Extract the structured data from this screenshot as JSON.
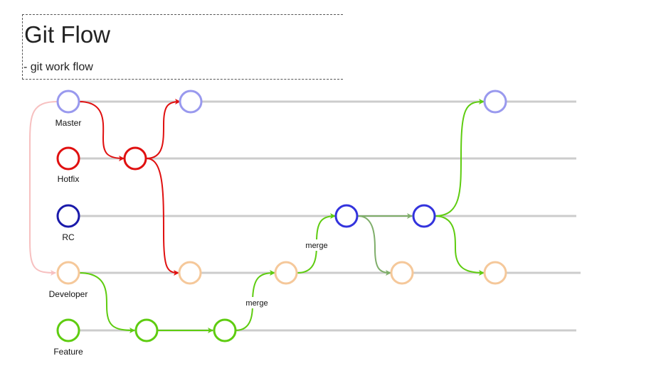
{
  "title": "Git Flow",
  "subtitle": "- git work flow",
  "branches": [
    {
      "id": "master",
      "label": "Master",
      "color": "#9999ee"
    },
    {
      "id": "hotfix",
      "label": "Hotfix",
      "color": "#e01010"
    },
    {
      "id": "rc",
      "label": "RC",
      "color": "#1a1aaa"
    },
    {
      "id": "developer",
      "label": "Developer",
      "color": "#f5c89a"
    },
    {
      "id": "feature",
      "label": "Feature",
      "color": "#5ecc10"
    }
  ],
  "edge_labels": {
    "merge_1": "merge",
    "merge_2": "merge"
  },
  "colors": {
    "lane": "#cccccc",
    "master_node": "#9999ee",
    "hotfix_edge": "#e01010",
    "developer_node": "#f5c89a",
    "feature_edge": "#5ecc10",
    "rc_node": "#3333dd",
    "rc_to_dev_edge": "#7fae6a",
    "master_to_dev_edge": "#f7c0c0"
  }
}
